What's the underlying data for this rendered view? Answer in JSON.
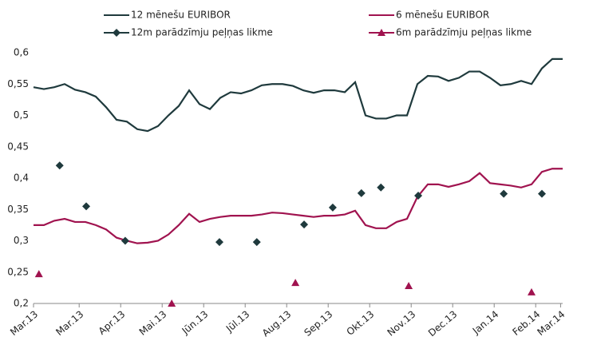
{
  "chart_data": {
    "type": "line",
    "series": [
      {
        "name": "12 mēnešu EURIBOR",
        "color": "#1f3a3d",
        "style": "line",
        "x": [
          0,
          0.25,
          0.5,
          0.75,
          1,
          1.25,
          1.5,
          1.75,
          2,
          2.25,
          2.5,
          2.75,
          3,
          3.25,
          3.5,
          3.75,
          4,
          4.25,
          4.5,
          4.75,
          5,
          5.25,
          5.5,
          5.75,
          6,
          6.25,
          6.5,
          6.75,
          7,
          7.25,
          7.5,
          7.75,
          8,
          8.25,
          8.5,
          8.75,
          9,
          9.25,
          9.5,
          9.75,
          10,
          10.25,
          10.5,
          10.75,
          11,
          11.25,
          11.5,
          11.75,
          12,
          12.25,
          12.5,
          12.75
        ],
        "values": [
          0.545,
          0.542,
          0.545,
          0.55,
          0.541,
          0.537,
          0.53,
          0.513,
          0.493,
          0.49,
          0.478,
          0.475,
          0.483,
          0.5,
          0.515,
          0.54,
          0.518,
          0.51,
          0.528,
          0.537,
          0.535,
          0.54,
          0.548,
          0.55,
          0.55,
          0.547,
          0.54,
          0.536,
          0.54,
          0.54,
          0.537,
          0.553,
          0.5,
          0.495,
          0.495,
          0.5,
          0.5,
          0.55,
          0.563,
          0.562,
          0.555,
          0.56,
          0.57,
          0.57,
          0.56,
          0.548,
          0.55,
          0.555,
          0.55,
          0.575,
          0.59,
          0.59
        ]
      },
      {
        "name": "6 mēnešu EURIBOR",
        "color": "#a0134f",
        "style": "line",
        "x": [
          0,
          0.25,
          0.5,
          0.75,
          1,
          1.25,
          1.5,
          1.75,
          2,
          2.25,
          2.5,
          2.75,
          3,
          3.25,
          3.5,
          3.75,
          4,
          4.25,
          4.5,
          4.75,
          5,
          5.25,
          5.5,
          5.75,
          6,
          6.25,
          6.5,
          6.75,
          7,
          7.25,
          7.5,
          7.75,
          8,
          8.25,
          8.5,
          8.75,
          9,
          9.25,
          9.5,
          9.75,
          10,
          10.25,
          10.5,
          10.75,
          11,
          11.25,
          11.5,
          11.75,
          12,
          12.25,
          12.5,
          12.75
        ],
        "values": [
          0.325,
          0.325,
          0.332,
          0.335,
          0.33,
          0.33,
          0.325,
          0.318,
          0.305,
          0.3,
          0.296,
          0.297,
          0.3,
          0.31,
          0.325,
          0.343,
          0.33,
          0.335,
          0.338,
          0.34,
          0.34,
          0.34,
          0.342,
          0.345,
          0.344,
          0.342,
          0.34,
          0.338,
          0.34,
          0.34,
          0.342,
          0.348,
          0.325,
          0.32,
          0.32,
          0.33,
          0.335,
          0.37,
          0.39,
          0.39,
          0.386,
          0.39,
          0.395,
          0.408,
          0.392,
          0.39,
          0.388,
          0.385,
          0.39,
          0.41,
          0.415,
          0.415
        ]
      },
      {
        "name": "12m parādzīmju peļņas likme",
        "color": "#1f3a3d",
        "style": "diamond",
        "x": [
          0.63,
          1.27,
          2.21,
          4.48,
          5.38,
          6.52,
          7.21,
          7.9,
          8.37,
          9.27,
          11.33,
          12.25
        ],
        "values": [
          0.42,
          0.355,
          0.3,
          0.298,
          0.298,
          0.326,
          0.353,
          0.376,
          0.385,
          0.372,
          0.375,
          0.375
        ]
      },
      {
        "name": "6m parādzīmju peļņas likme",
        "color": "#a0134f",
        "style": "triangle",
        "x": [
          0.13,
          3.33,
          6.31,
          9.04,
          12.0
        ],
        "values": [
          0.247,
          0.2,
          0.233,
          0.228,
          0.218
        ]
      }
    ],
    "xlim": [
      0,
      12.75
    ],
    "xticks": [
      {
        "value": 0,
        "label": "Mar.13"
      },
      {
        "value": 1.1,
        "label": "Mar.13"
      },
      {
        "value": 2.1,
        "label": "Apr.13"
      },
      {
        "value": 3.1,
        "label": "Mai.13"
      },
      {
        "value": 4.1,
        "label": "Jūn.13"
      },
      {
        "value": 5.1,
        "label": "Jūl.13"
      },
      {
        "value": 6.1,
        "label": "Aug.13"
      },
      {
        "value": 7.1,
        "label": "Sep.13"
      },
      {
        "value": 8.1,
        "label": "Okt.13"
      },
      {
        "value": 9.1,
        "label": "Nov.13"
      },
      {
        "value": 10.1,
        "label": "Dec.13"
      },
      {
        "value": 11.1,
        "label": "Jan.14"
      },
      {
        "value": 12.1,
        "label": "Feb.14"
      },
      {
        "value": 12.7,
        "label": "Mar.14"
      }
    ],
    "ylim": [
      0.2,
      0.6
    ],
    "yticks": [
      {
        "value": 0.2,
        "label": "0,2"
      },
      {
        "value": 0.25,
        "label": "0,25"
      },
      {
        "value": 0.3,
        "label": "0,3"
      },
      {
        "value": 0.35,
        "label": "0,35"
      },
      {
        "value": 0.4,
        "label": "0,4"
      },
      {
        "value": 0.45,
        "label": "0,45"
      },
      {
        "value": 0.5,
        "label": "0,5"
      },
      {
        "value": 0.55,
        "label": "0,55"
      },
      {
        "value": 0.6,
        "label": "0,6"
      }
    ],
    "grid": false
  }
}
